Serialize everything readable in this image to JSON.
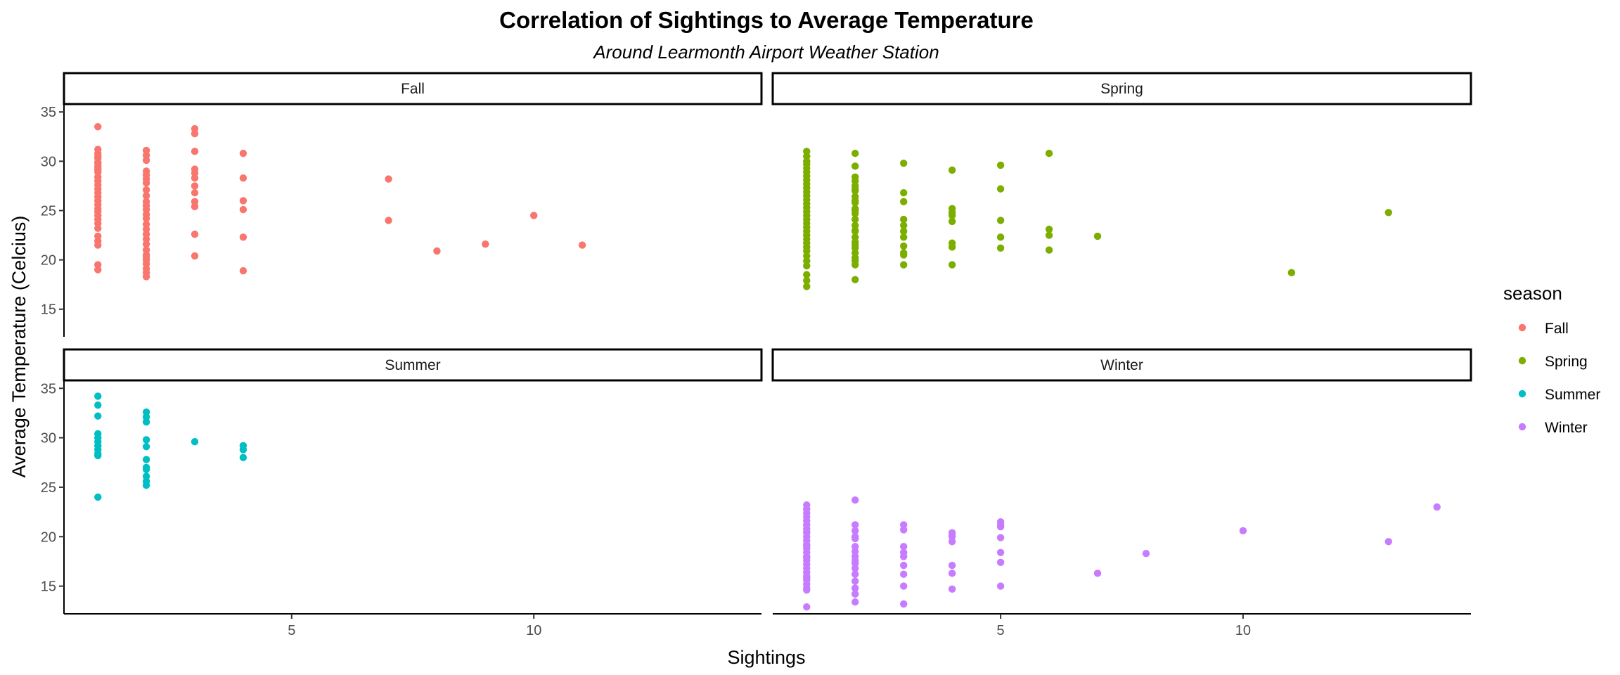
{
  "chart_data": {
    "type": "scatter",
    "title": "Correlation of Sightings to Average Temperature",
    "subtitle": "Around Learmonth Airport Weather Station",
    "xlabel": "Sightings",
    "ylabel": "Average Temperature (Celcius)",
    "xlim": [
      0.3,
      14.7
    ],
    "ylim": [
      12.2,
      35.8
    ],
    "x_ticks": [
      5,
      10
    ],
    "y_ticks": [
      15,
      20,
      25,
      30,
      35
    ],
    "grid": false,
    "facet_by": "season",
    "legend": {
      "title": "season",
      "position": "right",
      "entries": [
        {
          "label": "Fall",
          "color": "#F8766D"
        },
        {
          "label": "Spring",
          "color": "#7CAE00"
        },
        {
          "label": "Summer",
          "color": "#00BFC4"
        },
        {
          "label": "Winter",
          "color": "#C77CFF"
        }
      ]
    },
    "panels": [
      {
        "name": "Fall",
        "color": "#F8766D",
        "x": [
          1,
          1,
          1,
          1,
          1,
          1,
          1,
          1,
          1,
          1,
          1,
          1,
          1,
          1,
          1,
          1,
          1,
          1,
          1,
          1,
          1,
          1,
          1,
          1,
          1,
          1,
          1,
          1,
          1,
          1,
          2,
          2,
          2,
          2,
          2,
          2,
          2,
          2,
          2,
          2,
          2,
          2,
          2,
          2,
          2,
          2,
          2,
          2,
          2,
          2,
          2,
          2,
          2,
          2,
          2,
          2,
          2,
          3,
          3,
          3,
          3,
          3,
          3,
          3,
          3,
          3,
          3,
          3,
          3,
          4,
          4,
          4,
          4,
          4,
          4,
          7,
          7,
          8,
          9,
          10,
          11
        ],
        "y": [
          33.5,
          31.2,
          30.8,
          30.3,
          29.8,
          29.3,
          28.9,
          28.4,
          28.0,
          27.6,
          27.2,
          26.8,
          26.4,
          26.0,
          25.6,
          25.2,
          24.9,
          24.5,
          24.1,
          23.7,
          23.2,
          22.4,
          21.9,
          21.5,
          19.5,
          19.0,
          30.5,
          29.9,
          29.5,
          29.1,
          31.1,
          30.6,
          30.1,
          29.0,
          28.6,
          28.2,
          27.8,
          27.1,
          26.5,
          25.9,
          25.5,
          25.1,
          24.6,
          24.2,
          23.6,
          23.1,
          22.1,
          21.6,
          21.0,
          20.5,
          20.0,
          19.6,
          19.1,
          18.7,
          18.3,
          22.6,
          20.3,
          33.3,
          32.8,
          31.0,
          29.2,
          28.8,
          28.3,
          27.5,
          26.8,
          25.9,
          25.4,
          22.6,
          20.4,
          30.8,
          28.3,
          26.0,
          25.1,
          22.3,
          18.9,
          28.2,
          24.0,
          20.9,
          21.6,
          24.5,
          21.5
        ]
      },
      {
        "name": "Spring",
        "color": "#7CAE00",
        "x": [
          1,
          1,
          1,
          1,
          1,
          1,
          1,
          1,
          1,
          1,
          1,
          1,
          1,
          1,
          1,
          1,
          1,
          1,
          1,
          1,
          1,
          1,
          1,
          1,
          1,
          1,
          1,
          1,
          1,
          1,
          1,
          1,
          2,
          2,
          2,
          2,
          2,
          2,
          2,
          2,
          2,
          2,
          2,
          2,
          2,
          2,
          2,
          2,
          2,
          2,
          2,
          2,
          2,
          2,
          2,
          2,
          2,
          2,
          3,
          3,
          3,
          3,
          3,
          3,
          3,
          3,
          3,
          3,
          3,
          4,
          4,
          4,
          4,
          4,
          4,
          4,
          4,
          5,
          5,
          5,
          5,
          5,
          6,
          6,
          6,
          6,
          7,
          11,
          13
        ],
        "y": [
          31.0,
          30.5,
          30.0,
          29.7,
          29.3,
          28.9,
          28.5,
          28.1,
          27.7,
          27.3,
          26.9,
          26.5,
          26.1,
          25.7,
          25.3,
          24.9,
          24.5,
          24.1,
          23.7,
          23.3,
          22.9,
          22.5,
          22.1,
          21.7,
          21.3,
          20.9,
          20.4,
          19.9,
          19.4,
          18.5,
          17.9,
          17.3,
          30.8,
          29.5,
          28.4,
          28.0,
          27.5,
          27.0,
          26.4,
          25.8,
          25.2,
          24.7,
          24.1,
          23.5,
          22.9,
          22.3,
          21.8,
          21.2,
          20.7,
          20.2,
          19.5,
          18.0,
          26.0,
          25.0,
          23.0,
          21.5,
          19.9,
          27.2,
          29.8,
          26.8,
          25.9,
          24.1,
          23.5,
          22.9,
          22.3,
          21.4,
          20.7,
          20.5,
          19.5,
          29.1,
          25.2,
          24.8,
          23.9,
          21.7,
          21.3,
          19.5,
          24.5,
          29.6,
          27.2,
          22.3,
          21.2,
          24.0,
          30.8,
          23.1,
          21.0,
          22.5,
          22.4,
          18.7,
          24.8
        ]
      },
      {
        "name": "Summer",
        "color": "#00BFC4",
        "x": [
          1,
          1,
          1,
          1,
          1,
          1,
          1,
          1,
          1,
          1,
          1,
          2,
          2,
          2,
          2,
          2,
          2,
          2,
          2,
          2,
          2,
          2,
          3,
          4,
          4,
          4
        ],
        "y": [
          34.2,
          33.3,
          32.2,
          30.4,
          30.0,
          29.6,
          29.2,
          28.8,
          28.4,
          28.2,
          24.0,
          32.6,
          32.1,
          31.6,
          29.8,
          29.1,
          27.8,
          26.8,
          26.1,
          25.6,
          25.2,
          27.0,
          29.6,
          29.2,
          28.8,
          28.0
        ]
      },
      {
        "name": "Winter",
        "color": "#C77CFF",
        "x": [
          1,
          1,
          1,
          1,
          1,
          1,
          1,
          1,
          1,
          1,
          1,
          1,
          1,
          1,
          1,
          1,
          1,
          1,
          1,
          1,
          1,
          1,
          1,
          1,
          1,
          1,
          1,
          1,
          2,
          2,
          2,
          2,
          2,
          2,
          2,
          2,
          2,
          2,
          2,
          2,
          2,
          2,
          2,
          2,
          3,
          3,
          3,
          3,
          3,
          3,
          3,
          3,
          3,
          4,
          4,
          4,
          4,
          4,
          4,
          4,
          5,
          5,
          5,
          5,
          5,
          5,
          5,
          7,
          8,
          10,
          13,
          14
        ],
        "y": [
          23.2,
          22.8,
          22.4,
          22.0,
          21.6,
          21.2,
          20.8,
          20.4,
          20.0,
          19.6,
          19.2,
          18.8,
          18.4,
          18.0,
          17.6,
          17.2,
          16.8,
          16.4,
          16.0,
          15.6,
          15.2,
          14.8,
          14.6,
          15.8,
          17.9,
          19.0,
          20.5,
          12.9,
          23.7,
          21.2,
          20.6,
          19.8,
          19.0,
          18.5,
          18.0,
          17.3,
          16.8,
          16.2,
          15.5,
          14.8,
          14.2,
          13.4,
          20.0,
          17.6,
          21.2,
          20.7,
          19.0,
          18.4,
          17.1,
          16.2,
          15.0,
          13.2,
          18.0,
          20.4,
          20.0,
          19.5,
          17.1,
          16.3,
          14.7,
          20.1,
          21.5,
          21.2,
          19.9,
          18.4,
          17.4,
          15.0,
          21.0,
          16.3,
          18.3,
          20.6,
          19.5,
          23.0
        ]
      }
    ]
  }
}
